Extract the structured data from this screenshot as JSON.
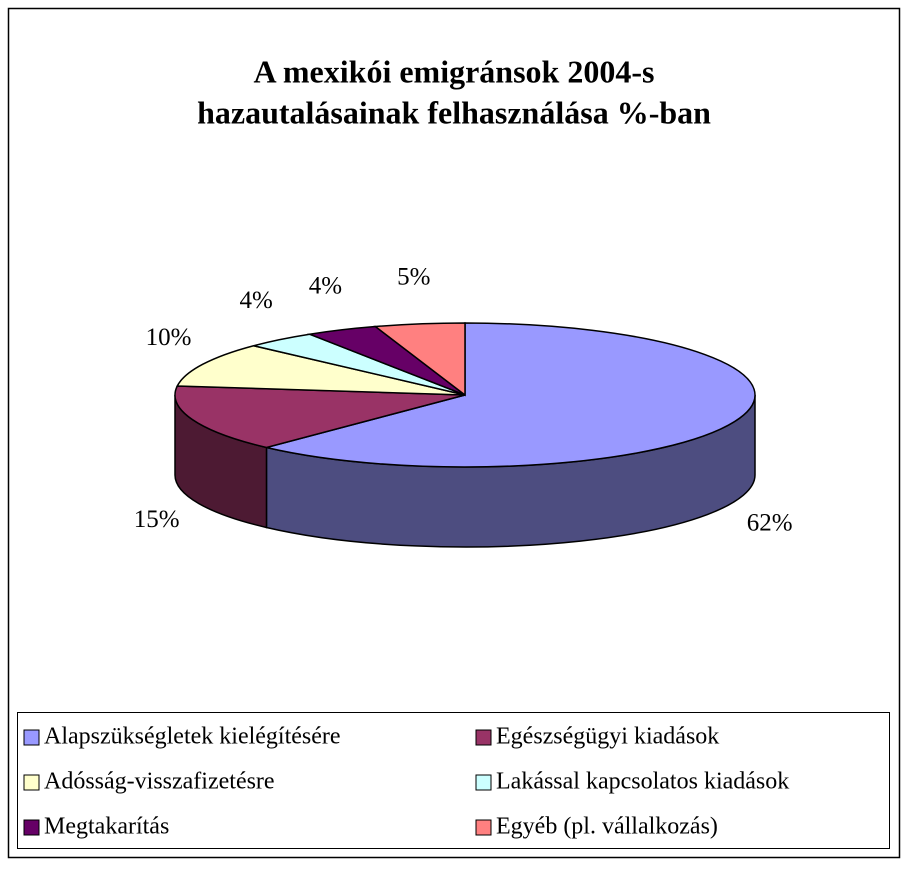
{
  "chart_data": {
    "type": "pie3d",
    "title": [
      "A mexikói emigránsok 2004-s",
      "hazautalásainak felhasználása  %-ban"
    ],
    "categories": [
      "Alapszükségletek kielégítésére",
      "Egészségügyi kiadások",
      "Adósság-visszafizetésre",
      "Lakással kapcsolatos kiadások",
      "Megtakarítás",
      "Egyéb (pl. vállalkozás)"
    ],
    "values": [
      62,
      15,
      10,
      4,
      4,
      5
    ],
    "value_labels": [
      "62%",
      "15%",
      "10%",
      "4%",
      "4%",
      "5%"
    ],
    "colors": [
      "#9999ff",
      "#993366",
      "#ffffcc",
      "#ccffff",
      "#660066",
      "#ff8080"
    ],
    "legend": "bottom"
  }
}
